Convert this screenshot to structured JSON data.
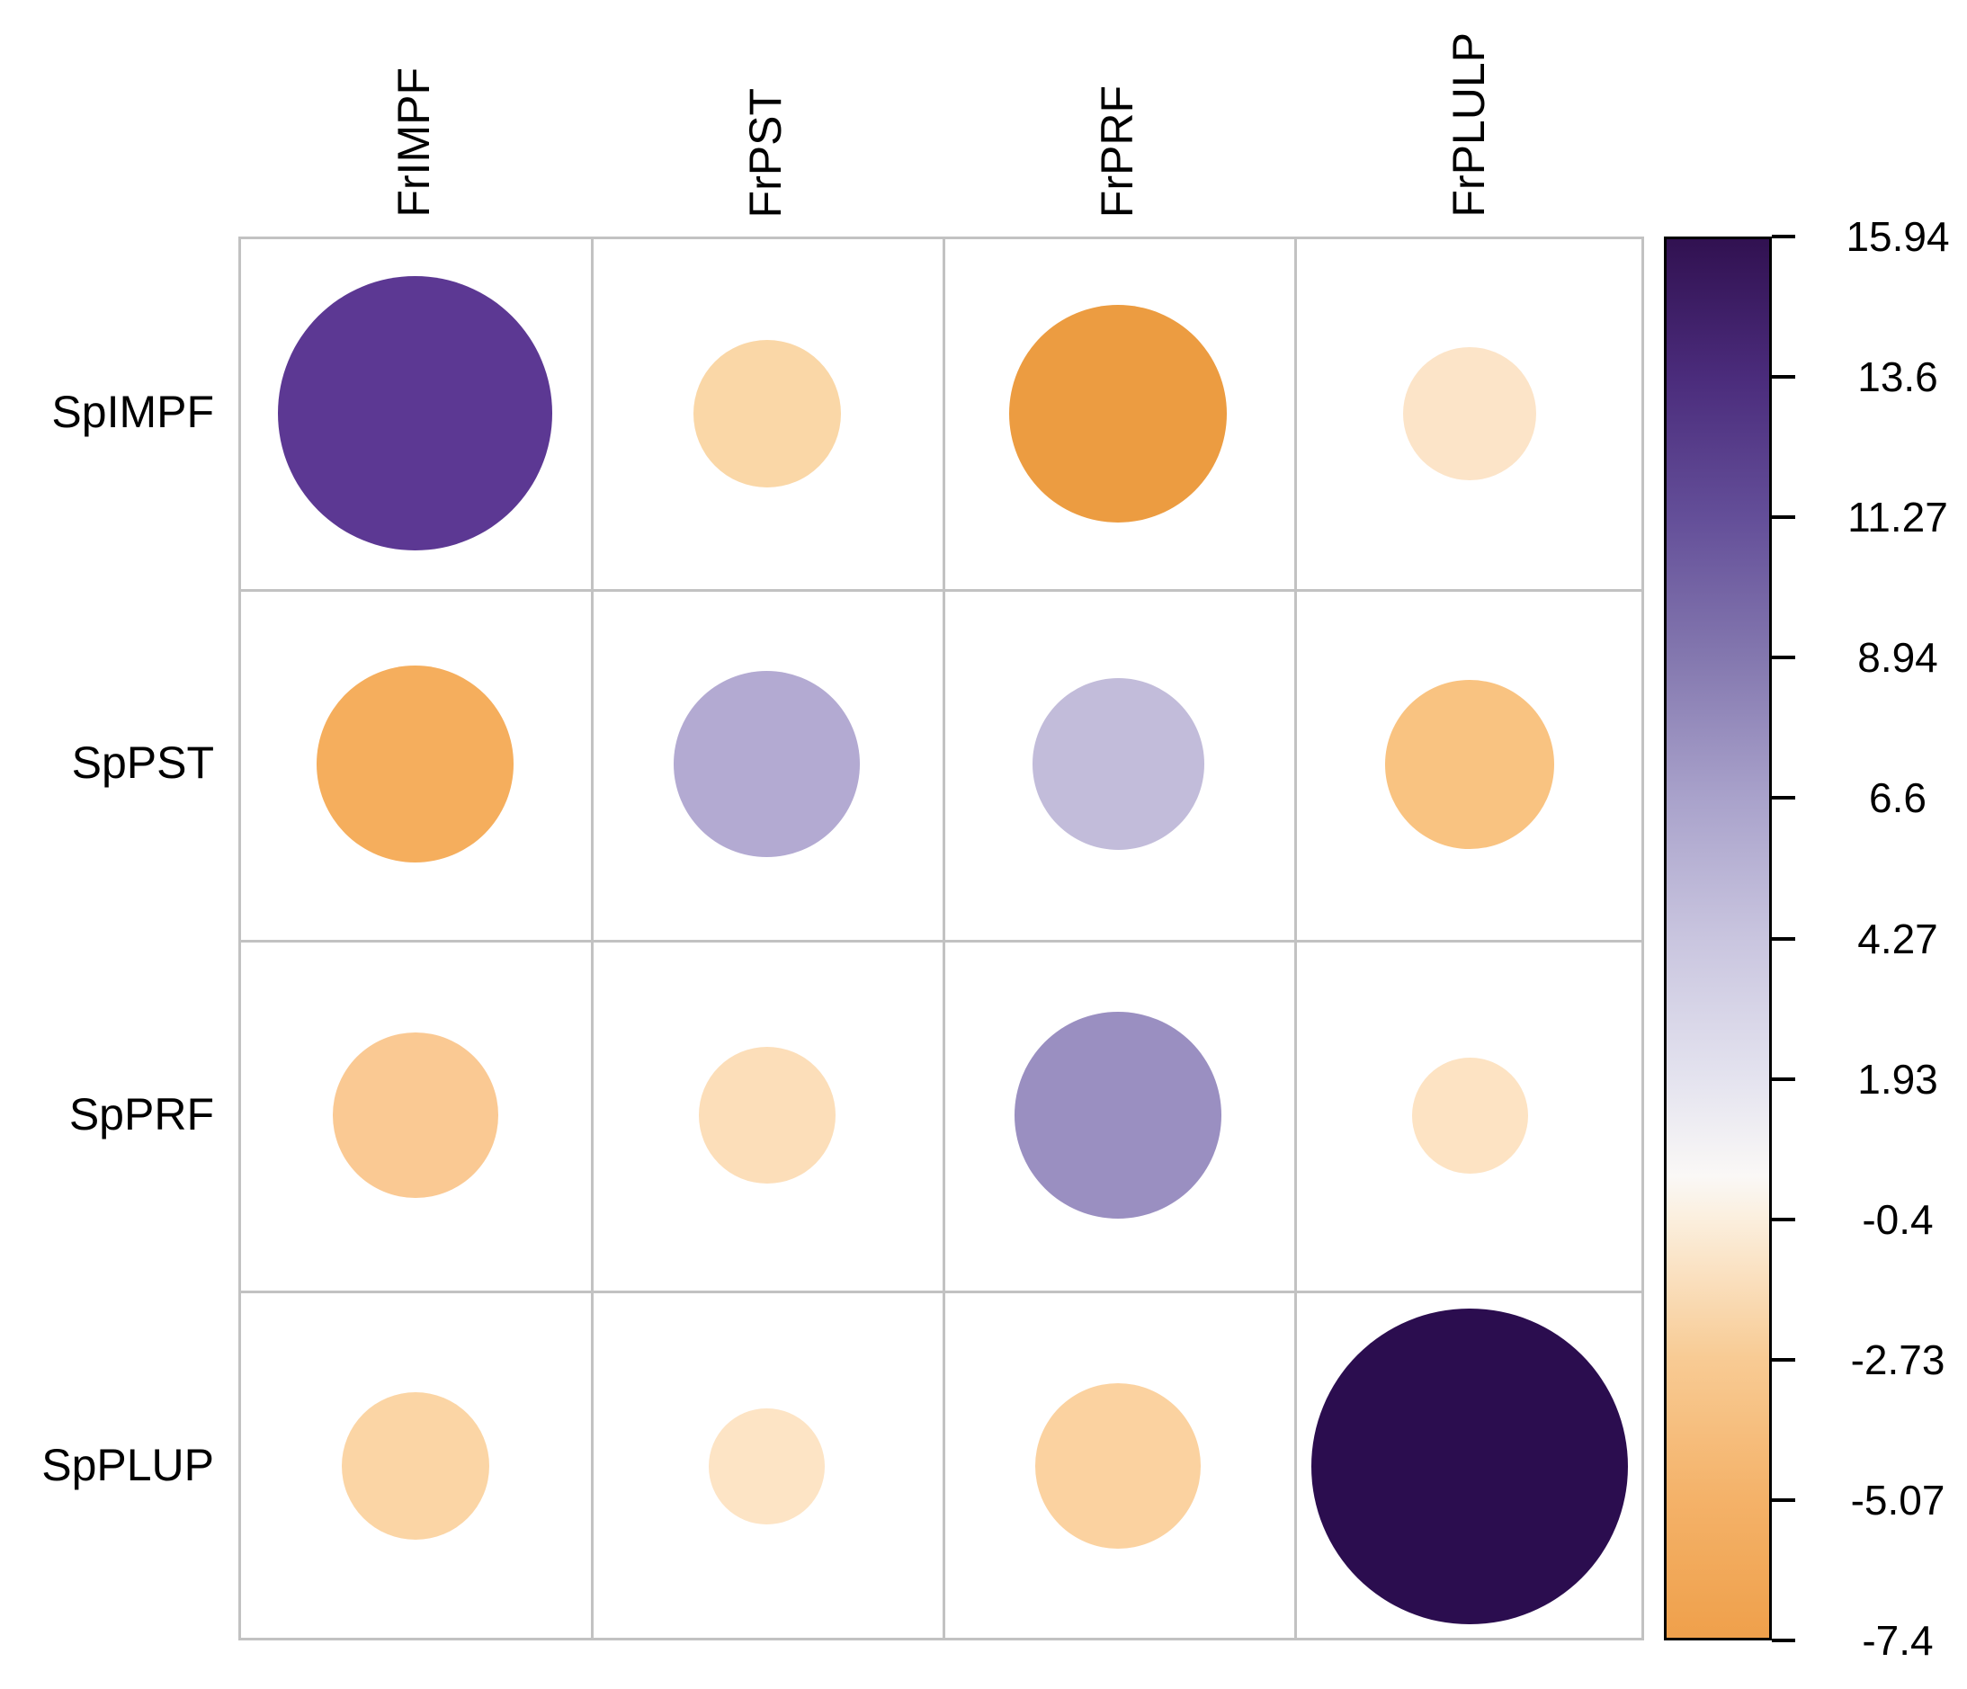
{
  "chart_data": {
    "type": "heatmap",
    "variant": "corrplot-circle-matrix",
    "title": "",
    "rows": [
      "SpIMPF",
      "SpPST",
      "SpPRF",
      "SpPLUP"
    ],
    "columns": [
      "FrIMPF",
      "FrPST",
      "FrPRF",
      "FrPLULP"
    ],
    "cells": [
      [
        {
          "row": "SpIMPF",
          "col": "FrIMPF",
          "value": 12.9,
          "color": "#5C3893",
          "size_frac": 0.781
        },
        {
          "row": "SpIMPF",
          "col": "FrPST",
          "value": -2.9,
          "color": "#FAD7A7",
          "size_frac": 0.42
        },
        {
          "row": "SpIMPF",
          "col": "FrPRF",
          "value": -7.4,
          "color": "#EC9C41",
          "size_frac": 0.62
        },
        {
          "row": "SpIMPF",
          "col": "FrPLULP",
          "value": -1.9,
          "color": "#FCE4C8",
          "size_frac": 0.379
        }
      ],
      [
        {
          "row": "SpPST",
          "col": "FrIMPF",
          "value": -5.4,
          "color": "#F5AE5D",
          "size_frac": 0.561
        },
        {
          "row": "SpPST",
          "col": "FrPST",
          "value": 6.1,
          "color": "#B3AAD2",
          "size_frac": 0.53
        },
        {
          "row": "SpPST",
          "col": "FrPRF",
          "value": 5.0,
          "color": "#C2BCDA",
          "size_frac": 0.489
        },
        {
          "row": "SpPST",
          "col": "FrPLULP",
          "value": -4.0,
          "color": "#F9C381",
          "size_frac": 0.481
        }
      ],
      [
        {
          "row": "SpPRF",
          "col": "FrIMPF",
          "value": -3.6,
          "color": "#FAC993",
          "size_frac": 0.471
        },
        {
          "row": "SpPRF",
          "col": "FrPST",
          "value": -2.4,
          "color": "#FCDEB9",
          "size_frac": 0.389
        },
        {
          "row": "SpPRF",
          "col": "FrPRF",
          "value": 7.4,
          "color": "#9A8FC1",
          "size_frac": 0.589
        },
        {
          "row": "SpPRF",
          "col": "FrPLULP",
          "value": -1.8,
          "color": "#FDE3C3",
          "size_frac": 0.33
        }
      ],
      [
        {
          "row": "SpPLUP",
          "col": "FrIMPF",
          "value": -2.9,
          "color": "#FBD5A5",
          "size_frac": 0.42
        },
        {
          "row": "SpPLUP",
          "col": "FrPST",
          "value": -1.8,
          "color": "#FDE4C5",
          "size_frac": 0.33
        },
        {
          "row": "SpPLUP",
          "col": "FrPRF",
          "value": -3.5,
          "color": "#FBD2A0",
          "size_frac": 0.471
        },
        {
          "row": "SpPLUP",
          "col": "FrPLULP",
          "value": 15.94,
          "color": "#2B0D4F",
          "size_frac": 0.901
        }
      ]
    ],
    "colorbar": {
      "min": -7.4,
      "max": 15.94,
      "tick_labels": [
        "15.94",
        "13.6",
        "11.27",
        "8.94",
        "6.6",
        "4.27",
        "1.93",
        "-0.4",
        "-2.73",
        "-5.07",
        "-7.4"
      ],
      "gradient_stops": [
        {
          "pos": 0,
          "color": "#311151"
        },
        {
          "pos": 10,
          "color": "#4B2C7C"
        },
        {
          "pos": 20,
          "color": "#644F99"
        },
        {
          "pos": 30,
          "color": "#8478AF"
        },
        {
          "pos": 40,
          "color": "#A9A2CB"
        },
        {
          "pos": 50,
          "color": "#C9C5DF"
        },
        {
          "pos": 60,
          "color": "#E4E3EF"
        },
        {
          "pos": 67,
          "color": "#FAF8F6"
        },
        {
          "pos": 70,
          "color": "#FBEFDE"
        },
        {
          "pos": 80,
          "color": "#F8CB94"
        },
        {
          "pos": 90,
          "color": "#F4B269"
        },
        {
          "pos": 100,
          "color": "#EFA04B"
        }
      ]
    },
    "legend_position": "right",
    "grid": true
  }
}
